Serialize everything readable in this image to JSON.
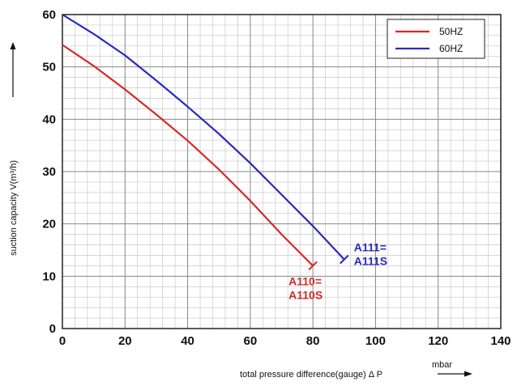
{
  "chart_data": {
    "type": "line",
    "title": "",
    "xlabel": "total pressure difference(gauge) Δ P",
    "xunit": "mbar",
    "ylabel": "suction capacity V(m³/h)",
    "xlim": [
      0,
      140
    ],
    "ylim": [
      0,
      60
    ],
    "x_ticks": [
      0,
      20,
      40,
      60,
      80,
      100,
      120,
      140
    ],
    "y_ticks": [
      0,
      10,
      20,
      30,
      40,
      50,
      60
    ],
    "x_minor_step": 4,
    "y_minor_step": 2,
    "grid": true,
    "legend_position": "top-right",
    "series": [
      {
        "name": "50HZ",
        "color": "#d42a2a",
        "x": [
          0,
          10,
          20,
          30,
          40,
          50,
          60,
          70,
          80
        ],
        "y": [
          54.2,
          50.2,
          45.7,
          40.9,
          35.9,
          30.4,
          24.4,
          18.0,
          12.0
        ],
        "end_label": [
          "A110=",
          "A110S"
        ]
      },
      {
        "name": "60HZ",
        "color": "#2a2ab8",
        "x": [
          0,
          10,
          20,
          30,
          40,
          50,
          60,
          70,
          80,
          90
        ],
        "y": [
          60.0,
          56.3,
          52.2,
          47.4,
          42.4,
          37.2,
          31.6,
          25.6,
          19.6,
          13.2
        ],
        "end_label": [
          "A111=",
          "A111S"
        ]
      }
    ]
  }
}
